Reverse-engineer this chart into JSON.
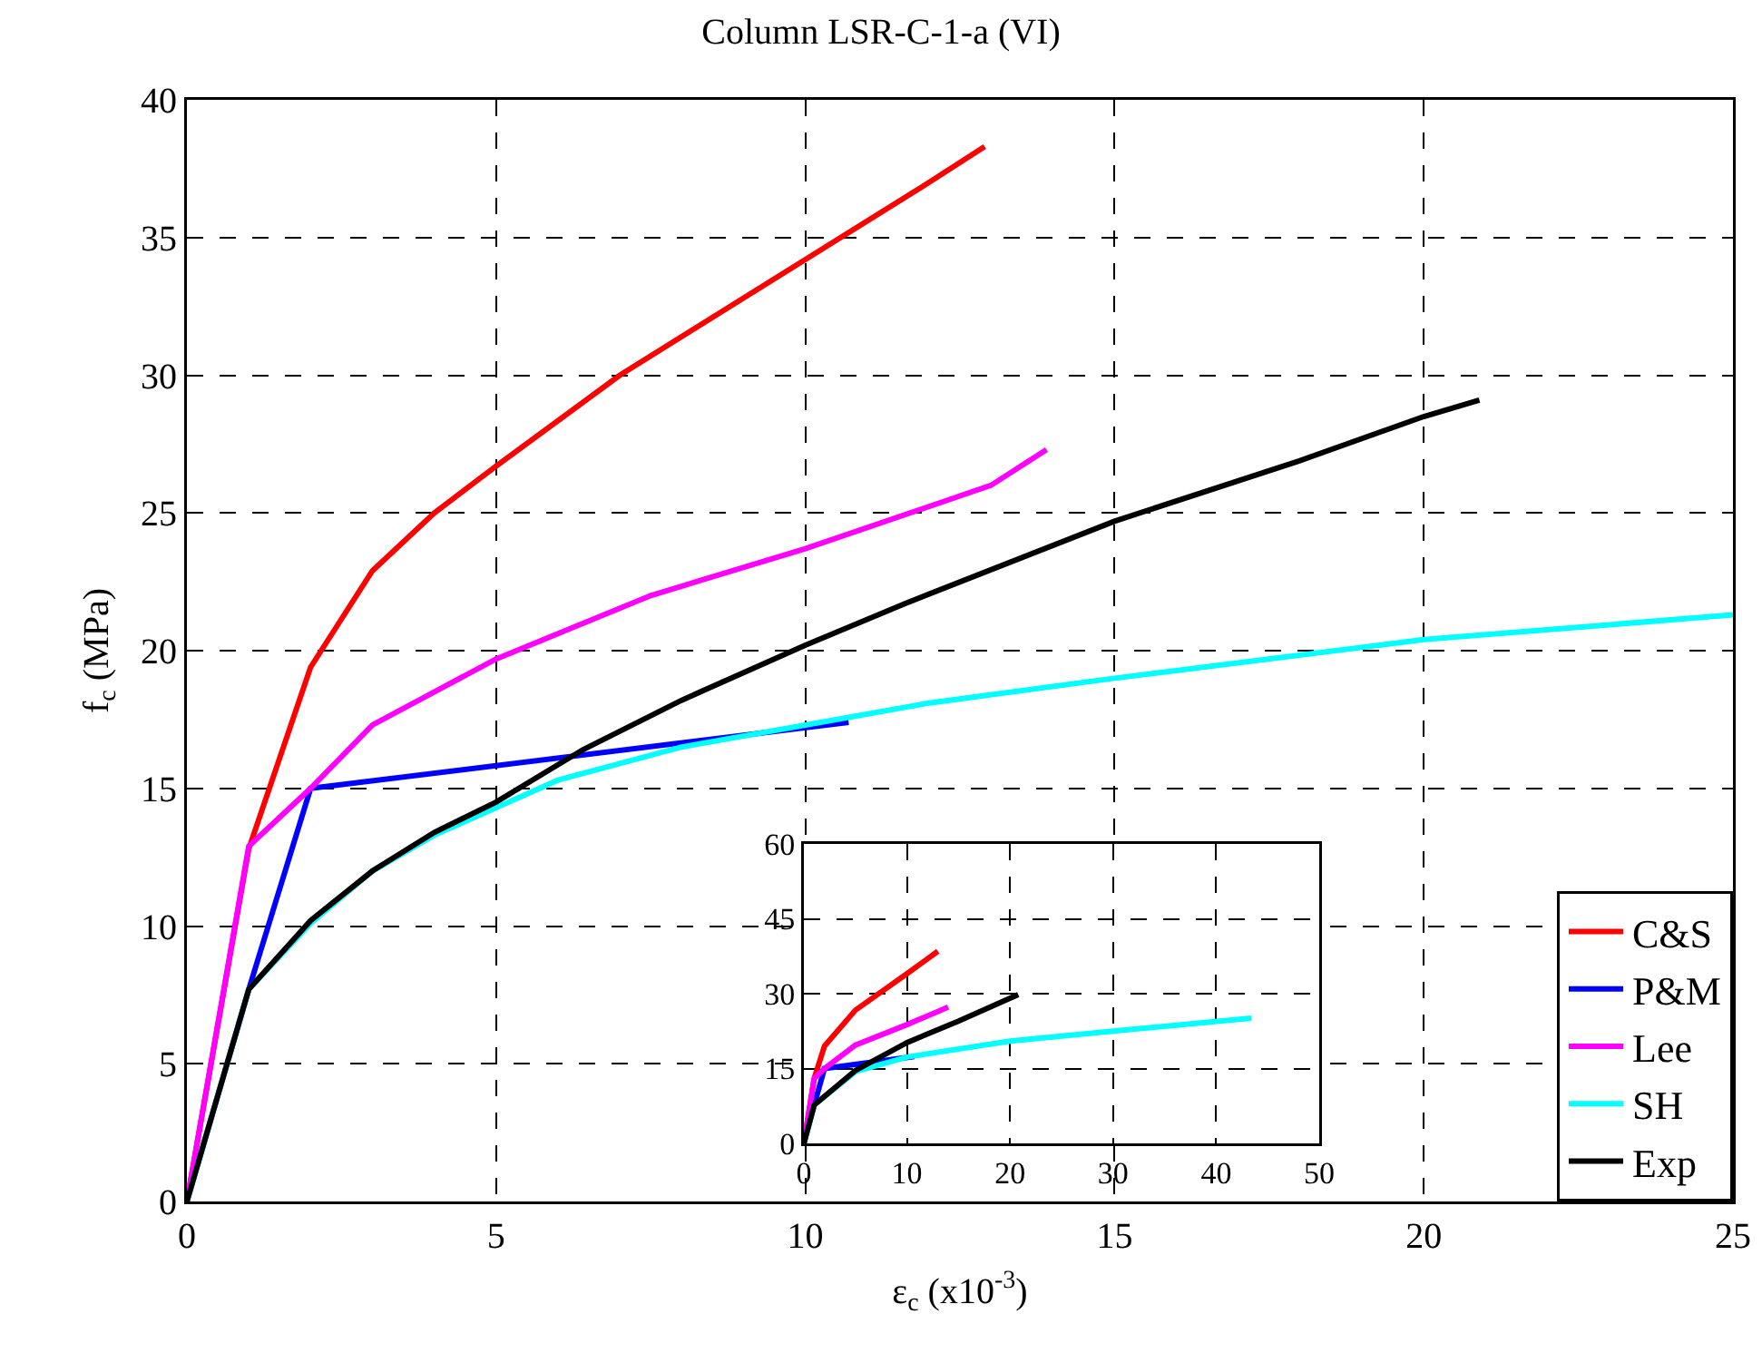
{
  "chart_data": [
    {
      "type": "line",
      "title": "Column LSR-C-1-a (VI)",
      "xlabel": "ε$_{c}$ (x10$^{-3}$)",
      "ylabel": "f$_{c}$ (MPa)",
      "xlim": [
        0,
        25
      ],
      "ylim": [
        0,
        40
      ],
      "xticks": [
        0,
        5,
        10,
        15,
        20,
        25
      ],
      "yticks": [
        0,
        5,
        10,
        15,
        20,
        25,
        30,
        35,
        40
      ],
      "grid": true,
      "legend": "bottom right",
      "series": [
        {
          "name": "C&S",
          "color": "#ff0000",
          "x": [
            0,
            1,
            2,
            3,
            4,
            5,
            7,
            10,
            12,
            12.9
          ],
          "values": [
            0,
            12.8,
            19.4,
            22.9,
            25,
            26.7,
            30,
            34.2,
            37,
            38.3
          ]
        },
        {
          "name": "P&M",
          "color": "#0000ff",
          "x": [
            0,
            1,
            2,
            10.7
          ],
          "values": [
            0,
            7.7,
            15,
            17.4
          ]
        },
        {
          "name": "Lee",
          "color": "#ff00ff",
          "x": [
            0,
            1,
            2,
            3,
            5,
            7.5,
            10,
            13,
            13.9
          ],
          "values": [
            0,
            12.9,
            15,
            17.3,
            19.7,
            22,
            23.7,
            26,
            27.3
          ]
        },
        {
          "name": "SH",
          "color": "#00ffff",
          "x": [
            0,
            1,
            2,
            3,
            4,
            5,
            6,
            8,
            10,
            12,
            15,
            20,
            25
          ],
          "values": [
            0,
            7.7,
            10.1,
            12,
            13.3,
            14.3,
            15.3,
            16.5,
            17.3,
            18.1,
            19,
            20.4,
            21.3
          ]
        },
        {
          "name": "Exp",
          "color": "#000000",
          "x": [
            0,
            1,
            2,
            3,
            4,
            5,
            6.4,
            8,
            10,
            11.6,
            15,
            18,
            20,
            20.9
          ],
          "values": [
            0,
            7.7,
            10.2,
            12,
            13.4,
            14.5,
            16.4,
            18.2,
            20.2,
            21.7,
            24.7,
            26.9,
            28.5,
            29.1
          ]
        }
      ]
    },
    {
      "type": "line",
      "xlim": [
        0,
        50
      ],
      "ylim": [
        0,
        60
      ],
      "xticks": [
        0,
        10,
        20,
        30,
        40,
        50
      ],
      "yticks": [
        0,
        15,
        30,
        45,
        60
      ],
      "grid": true,
      "series": [
        {
          "color": "#ff0000",
          "x": [
            0,
            1,
            2,
            5,
            10,
            13
          ],
          "values": [
            0,
            13,
            19.5,
            26.7,
            34,
            38.5
          ]
        },
        {
          "color": "#0000ff",
          "x": [
            0,
            1,
            2,
            10.7
          ],
          "values": [
            0,
            7.7,
            15,
            17.4
          ]
        },
        {
          "color": "#ff00ff",
          "x": [
            0,
            1,
            2,
            5,
            10,
            14
          ],
          "values": [
            0,
            13,
            15,
            19.7,
            23.8,
            27.3
          ]
        },
        {
          "color": "#00ffff",
          "x": [
            0,
            1,
            5,
            10,
            20,
            30,
            43.4
          ],
          "values": [
            0,
            7.7,
            14.4,
            17.3,
            20.5,
            22.5,
            25.1
          ]
        },
        {
          "color": "#000000",
          "x": [
            0,
            1,
            5,
            10,
            15,
            20.8
          ],
          "values": [
            0,
            7.7,
            14.6,
            20.2,
            24.5,
            29.8
          ]
        }
      ]
    }
  ]
}
